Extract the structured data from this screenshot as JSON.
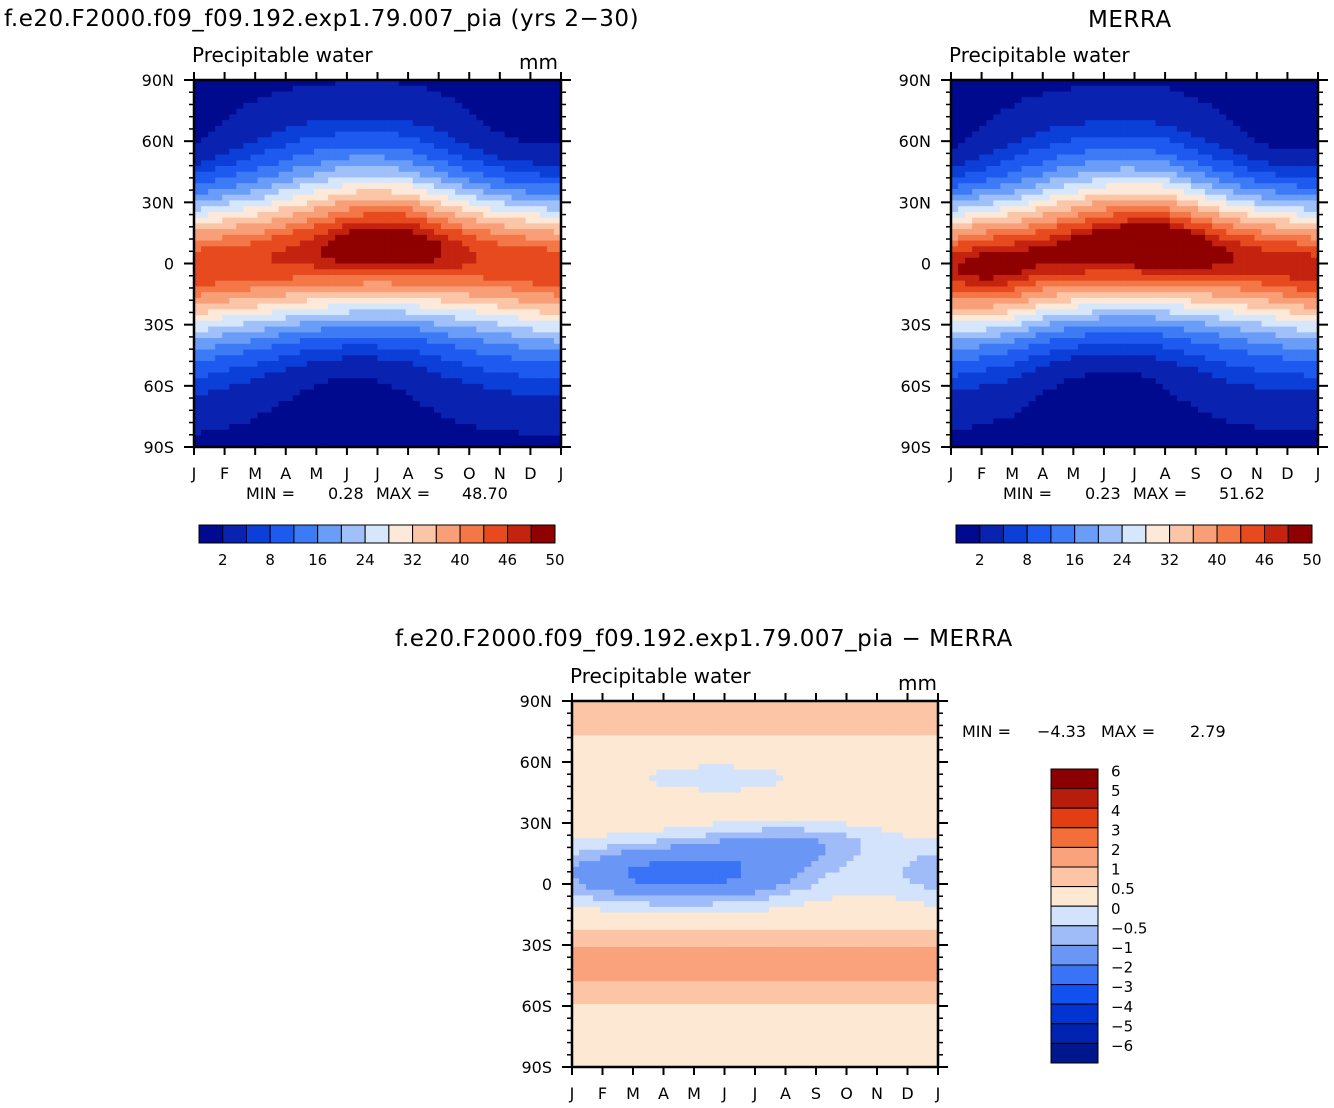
{
  "chart_data": [
    {
      "type": "heatmap",
      "id": "model",
      "title": "f.e20.F2000.f09_f09.192.exp1.79.007_pia (yrs 2−30)",
      "subtitle": "Precipitable water",
      "units": "mm",
      "x_ticks": [
        "J",
        "F",
        "M",
        "A",
        "M",
        "J",
        "J",
        "A",
        "S",
        "O",
        "N",
        "D",
        "J"
      ],
      "y_ticks": [
        "90N",
        "60N",
        "30N",
        "0",
        "30S",
        "60S",
        "90S"
      ],
      "min_label": "MIN =",
      "min_value": "0.28",
      "max_label": "MAX =",
      "max_value": "48.70",
      "colorbar_labels": [
        "2",
        "8",
        "16",
        "24",
        "32",
        "40",
        "46",
        "50"
      ],
      "field": {
        "eq_lat": [
          -2,
          0,
          1,
          3,
          5,
          7,
          8,
          8,
          6,
          4,
          2,
          0,
          -2
        ],
        "eq_peak": [
          44,
          44,
          44,
          45,
          46,
          48,
          49,
          49,
          47,
          45,
          44,
          44,
          44
        ],
        "width": 26
      }
    },
    {
      "type": "heatmap",
      "id": "merra",
      "title": "MERRA",
      "subtitle": "Precipitable water",
      "units": "",
      "x_ticks": [
        "J",
        "F",
        "M",
        "A",
        "M",
        "J",
        "J",
        "A",
        "S",
        "O",
        "N",
        "D",
        "J"
      ],
      "y_ticks": [
        "90N",
        "60N",
        "30N",
        "0",
        "30S",
        "60S",
        "90S"
      ],
      "min_label": "MIN =",
      "min_value": "0.23",
      "max_label": "MAX =",
      "max_value": "51.62",
      "colorbar_labels": [
        "2",
        "8",
        "16",
        "24",
        "32",
        "40",
        "46",
        "50"
      ],
      "field": {
        "eq_lat": [
          -2,
          -1,
          0,
          3,
          5,
          7,
          8,
          8,
          6,
          4,
          2,
          0,
          -2
        ],
        "eq_peak": [
          46,
          48,
          48,
          47,
          48,
          49,
          50,
          51,
          49,
          47,
          46,
          46,
          46
        ],
        "width": 25
      }
    },
    {
      "type": "heatmap",
      "id": "diff",
      "title": "f.e20.F2000.f09_f09.192.exp1.79.007_pia − MERRA",
      "subtitle": "Precipitable water",
      "units": "mm",
      "x_ticks": [
        "J",
        "F",
        "M",
        "A",
        "M",
        "J",
        "J",
        "A",
        "S",
        "O",
        "N",
        "D",
        "J"
      ],
      "y_ticks": [
        "90N",
        "60N",
        "30N",
        "0",
        "30S",
        "60S",
        "90S"
      ],
      "min_label": "MIN =",
      "min_value": "−4.33",
      "max_label": "MAX =",
      "max_value": "2.79",
      "colorbar_labels": [
        "6",
        "5",
        "4",
        "3",
        "2",
        "1",
        "0.5",
        "0",
        "−0.5",
        "−1",
        "−2",
        "−3",
        "−4",
        "−5",
        "−6"
      ]
    }
  ],
  "palette": {
    "model_levels": [
      "#000a8f",
      "#0a22b0",
      "#0b3fd8",
      "#1e5af0",
      "#3d7af5",
      "#6a9df7",
      "#9fc0f8",
      "#d6e6fb",
      "#fde9d9",
      "#fbc6a8",
      "#f89f78",
      "#f47748",
      "#e64a1e",
      "#c4230f",
      "#8f0000"
    ],
    "diff_levels": [
      "#00168c",
      "#0022b0",
      "#0033d0",
      "#1350f0",
      "#3a73f5",
      "#6a96f5",
      "#9fbcf8",
      "#d2e3fb",
      "#fde8d3",
      "#fcc6a6",
      "#f9a27c",
      "#f46e3a",
      "#e33d13",
      "#b81c0b",
      "#8b0000"
    ]
  }
}
